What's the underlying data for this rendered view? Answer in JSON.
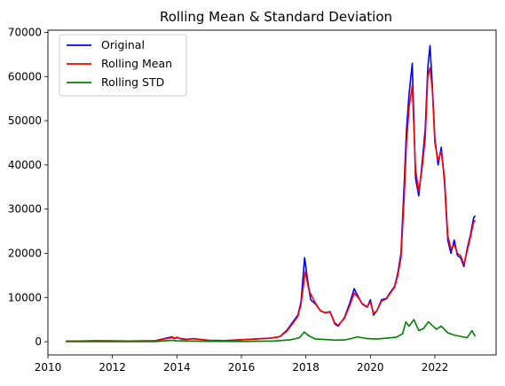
{
  "chart_data": {
    "type": "line",
    "title": "Rolling Mean & Standard Deviation",
    "xlabel": "",
    "ylabel": "",
    "xlim": [
      2010.0,
      2023.9
    ],
    "ylim": [
      -3000,
      70500
    ],
    "x_ticks": [
      2010,
      2012,
      2014,
      2016,
      2018,
      2020,
      2022
    ],
    "y_ticks": [
      0,
      10000,
      20000,
      30000,
      40000,
      50000,
      60000,
      70000
    ],
    "grid": false,
    "legend_position": "top-left",
    "colors": {
      "Original": "#0000ff",
      "Rolling Mean": "#ff0000",
      "Rolling STD": "#008000"
    },
    "series": [
      {
        "name": "Original",
        "x": [
          2010.55,
          2011.5,
          2012.5,
          2013.3,
          2013.85,
          2013.92,
          2014.0,
          2014.15,
          2014.3,
          2014.5,
          2015.0,
          2015.5,
          2016.0,
          2016.5,
          2016.9,
          2017.2,
          2017.4,
          2017.6,
          2017.75,
          2017.85,
          2017.96,
          2018.05,
          2018.15,
          2018.3,
          2018.45,
          2018.6,
          2018.75,
          2018.9,
          2019.0,
          2019.2,
          2019.35,
          2019.5,
          2019.6,
          2019.75,
          2019.9,
          2020.0,
          2020.1,
          2020.2,
          2020.35,
          2020.5,
          2020.6,
          2020.75,
          2020.85,
          2020.95,
          2021.05,
          2021.12,
          2021.2,
          2021.3,
          2021.4,
          2021.5,
          2021.6,
          2021.7,
          2021.78,
          2021.85,
          2021.92,
          2022.0,
          2022.1,
          2022.2,
          2022.3,
          2022.4,
          2022.5,
          2022.6,
          2022.7,
          2022.8,
          2022.9,
          2023.0,
          2023.1,
          2023.2,
          2023.25
        ],
        "values": [
          100,
          200,
          150,
          200,
          1100,
          700,
          1000,
          600,
          500,
          700,
          300,
          250,
          450,
          650,
          800,
          1200,
          2500,
          4500,
          6000,
          9000,
          19000,
          14000,
          9500,
          8500,
          7000,
          6500,
          6800,
          4000,
          3500,
          5500,
          8500,
          12000,
          10500,
          8500,
          7800,
          9500,
          6000,
          7000,
          9500,
          9800,
          11000,
          12500,
          15500,
          20000,
          36000,
          48000,
          56000,
          63000,
          37000,
          33000,
          40000,
          48000,
          62000,
          67000,
          58000,
          46000,
          40000,
          44000,
          36000,
          23000,
          20000,
          23000,
          19500,
          19000,
          17000,
          21000,
          24000,
          28000,
          28500
        ]
      },
      {
        "name": "Rolling Mean",
        "x": [
          2010.55,
          2011.5,
          2012.5,
          2013.3,
          2013.85,
          2014.0,
          2014.3,
          2014.5,
          2015.0,
          2015.5,
          2016.0,
          2016.5,
          2016.9,
          2017.2,
          2017.4,
          2017.6,
          2017.75,
          2017.85,
          2017.98,
          2018.1,
          2018.3,
          2018.45,
          2018.6,
          2018.75,
          2018.9,
          2019.0,
          2019.2,
          2019.35,
          2019.5,
          2019.6,
          2019.75,
          2019.9,
          2020.0,
          2020.1,
          2020.2,
          2020.35,
          2020.5,
          2020.6,
          2020.75,
          2020.85,
          2020.95,
          2021.05,
          2021.12,
          2021.2,
          2021.3,
          2021.4,
          2021.5,
          2021.6,
          2021.7,
          2021.78,
          2021.85,
          2021.92,
          2022.0,
          2022.1,
          2022.2,
          2022.3,
          2022.4,
          2022.5,
          2022.6,
          2022.7,
          2022.8,
          2022.9,
          2023.0,
          2023.1,
          2023.2,
          2023.25
        ],
        "values": [
          100,
          200,
          150,
          200,
          900,
          850,
          550,
          650,
          320,
          260,
          440,
          630,
          780,
          1150,
          2300,
          4200,
          5700,
          8500,
          15800,
          11500,
          8700,
          7000,
          6600,
          6700,
          4200,
          3700,
          5300,
          8000,
          11000,
          10200,
          8600,
          7900,
          9000,
          6400,
          7000,
          9200,
          9700,
          10800,
          12300,
          15000,
          19000,
          33000,
          45000,
          53000,
          58000,
          39000,
          34000,
          39000,
          46000,
          60000,
          62000,
          57000,
          45000,
          41000,
          43000,
          37000,
          24000,
          21000,
          22000,
          20000,
          19500,
          17500,
          20500,
          23500,
          27000,
          27500
        ]
      },
      {
        "name": "Rolling STD",
        "x": [
          2010.55,
          2011.5,
          2012.5,
          2013.3,
          2013.85,
          2014.0,
          2014.3,
          2015.0,
          2016.0,
          2016.5,
          2017.0,
          2017.5,
          2017.8,
          2017.95,
          2018.1,
          2018.3,
          2018.6,
          2018.9,
          2019.2,
          2019.4,
          2019.6,
          2019.9,
          2020.2,
          2020.5,
          2020.8,
          2021.0,
          2021.1,
          2021.2,
          2021.35,
          2021.5,
          2021.65,
          2021.8,
          2021.9,
          2022.05,
          2022.2,
          2022.4,
          2022.6,
          2022.8,
          2023.0,
          2023.15,
          2023.25
        ],
        "values": [
          10,
          20,
          15,
          30,
          300,
          200,
          150,
          80,
          60,
          100,
          150,
          400,
          900,
          2200,
          1300,
          600,
          500,
          350,
          400,
          700,
          1100,
          700,
          600,
          800,
          1000,
          1800,
          4500,
          3500,
          5000,
          2500,
          3000,
          4500,
          3800,
          2800,
          3500,
          2000,
          1500,
          1200,
          900,
          2500,
          1200
        ]
      }
    ]
  }
}
